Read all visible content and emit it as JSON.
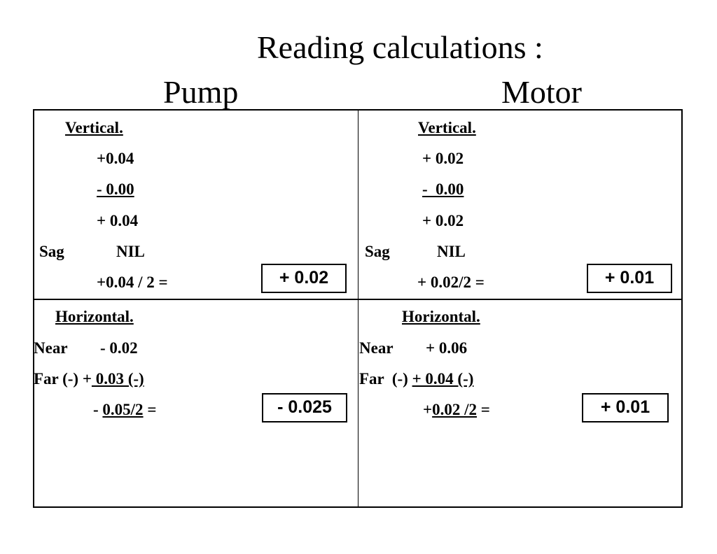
{
  "title": "Reading calculations :",
  "columns": {
    "pump": "Pump",
    "motor": "Motor"
  },
  "pump": {
    "vertical": {
      "heading": "Vertical.",
      "reading1": "+0.04",
      "reading2": "- 0.00",
      "difference": "+ 0.04",
      "sag_label": "Sag",
      "sag_value": "NIL",
      "formula": "+0.04 / 2 =",
      "result": "+ 0.02"
    },
    "horizontal": {
      "heading": "Horizontal.",
      "near_label": "Near",
      "near_value": "- 0.02",
      "far_prefix": "Far (-) +",
      "far_value": " 0.03 (-)",
      "calc_prefix": "- ",
      "calc_value": "0.05/2",
      "calc_suffix": " =",
      "result": "- 0.025"
    }
  },
  "motor": {
    "vertical": {
      "heading": "Vertical.",
      "reading1": "+ 0.02",
      "reading2": "-  0.00",
      "difference": "+ 0.02",
      "sag_label": "Sag",
      "sag_value": "NIL",
      "formula": "+ 0.02/2 =",
      "result": "+ 0.01"
    },
    "horizontal": {
      "heading": "Horizontal.",
      "near_label": "Near",
      "near_value": "+ 0.06",
      "far_prefix": "Far  (-) ",
      "far_value": "+ 0.04 (-)",
      "calc_prefix": "+",
      "calc_value": "0.02 /2",
      "calc_suffix": " =",
      "result": "+ 0.01"
    }
  }
}
